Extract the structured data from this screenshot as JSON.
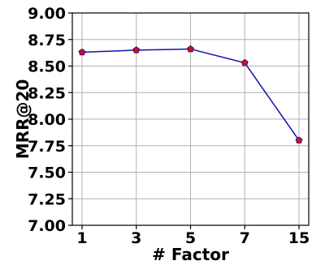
{
  "chart_data": {
    "type": "line",
    "title": "",
    "xlabel": "# Factor",
    "ylabel": "MRR@20",
    "categories": [
      "1",
      "3",
      "5",
      "7",
      "15"
    ],
    "series": [
      {
        "values": [
          8.63,
          8.65,
          8.66,
          8.53,
          7.8
        ]
      }
    ],
    "ylim": [
      7.0,
      9.0
    ],
    "yticks": [
      "7.00",
      "7.25",
      "7.50",
      "7.75",
      "8.00",
      "8.25",
      "8.50",
      "8.75",
      "9.00"
    ],
    "grid": true,
    "colors": {
      "line": "#1010b0",
      "marker": "#cc1111",
      "grid": "#b0b0b0"
    }
  }
}
